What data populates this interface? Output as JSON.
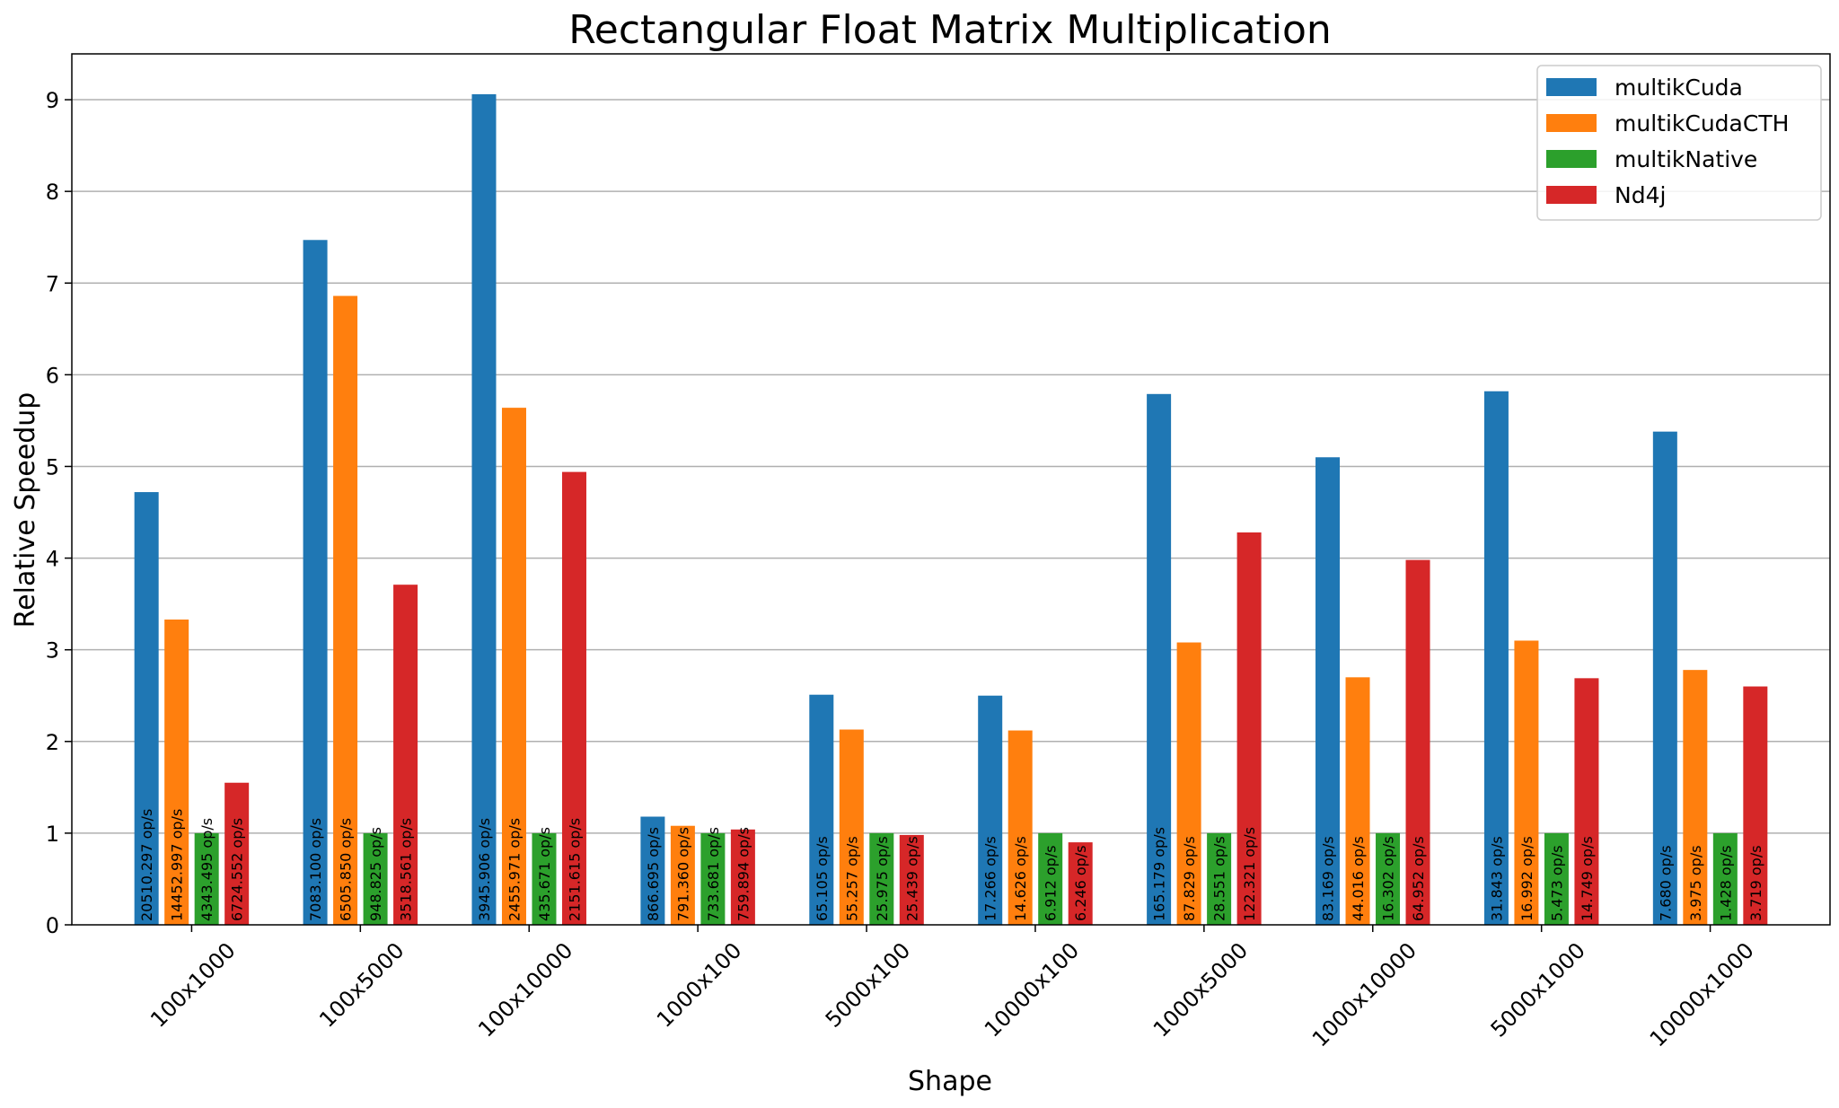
{
  "chart_data": {
    "type": "bar",
    "title": "Rectangular Float Matrix Multiplication",
    "xlabel": "Shape",
    "ylabel": "Relative Speedup",
    "ylim": [
      0,
      9.5
    ],
    "yticks": [
      0,
      1,
      2,
      3,
      4,
      5,
      6,
      7,
      8,
      9
    ],
    "grid": "y",
    "legend_position": "top-right",
    "categories": [
      "100x1000",
      "100x5000",
      "100x10000",
      "1000x100",
      "5000x100",
      "10000x100",
      "1000x5000",
      "1000x10000",
      "5000x1000",
      "10000x1000"
    ],
    "series": [
      {
        "name": "multikCuda",
        "color": "#1f77b4",
        "values": [
          4.72,
          7.47,
          9.06,
          1.18,
          2.51,
          2.5,
          5.79,
          5.1,
          5.82,
          5.38
        ],
        "labels": [
          "20510.297 op/s",
          "7083.100 op/s",
          "3945.906 op/s",
          "866.695 op/s",
          "65.105 op/s",
          "17.266 op/s",
          "165.179 op/s",
          "83.169 op/s",
          "31.843 op/s",
          "7.680 op/s"
        ]
      },
      {
        "name": "multikCudaCTH",
        "color": "#ff7f0e",
        "values": [
          3.33,
          6.86,
          5.64,
          1.08,
          2.13,
          2.12,
          3.08,
          2.7,
          3.1,
          2.78
        ],
        "labels": [
          "14452.997 op/s",
          "6505.850 op/s",
          "2455.971 op/s",
          "791.360 op/s",
          "55.257 op/s",
          "14.626 op/s",
          "87.829 op/s",
          "44.016 op/s",
          "16.992 op/s",
          "3.975 op/s"
        ]
      },
      {
        "name": "multikNative",
        "color": "#2ca02c",
        "values": [
          1.0,
          1.0,
          1.0,
          1.0,
          1.0,
          1.0,
          1.0,
          1.0,
          1.0,
          1.0
        ],
        "labels": [
          "4343.495 op/s",
          "948.825 op/s",
          "435.671 op/s",
          "733.681 op/s",
          "25.975 op/s",
          "6.912 op/s",
          "28.551 op/s",
          "16.302 op/s",
          "5.473 op/s",
          "1.428 op/s"
        ]
      },
      {
        "name": "Nd4j",
        "color": "#d62728",
        "values": [
          1.55,
          3.71,
          4.94,
          1.04,
          0.98,
          0.9,
          4.28,
          3.98,
          2.69,
          2.6
        ],
        "labels": [
          "6724.552 op/s",
          "3518.561 op/s",
          "2151.615 op/s",
          "759.894 op/s",
          "25.439 op/s",
          "6.246 op/s",
          "122.321 op/s",
          "64.952 op/s",
          "14.749 op/s",
          "3.719 op/s"
        ]
      }
    ]
  }
}
